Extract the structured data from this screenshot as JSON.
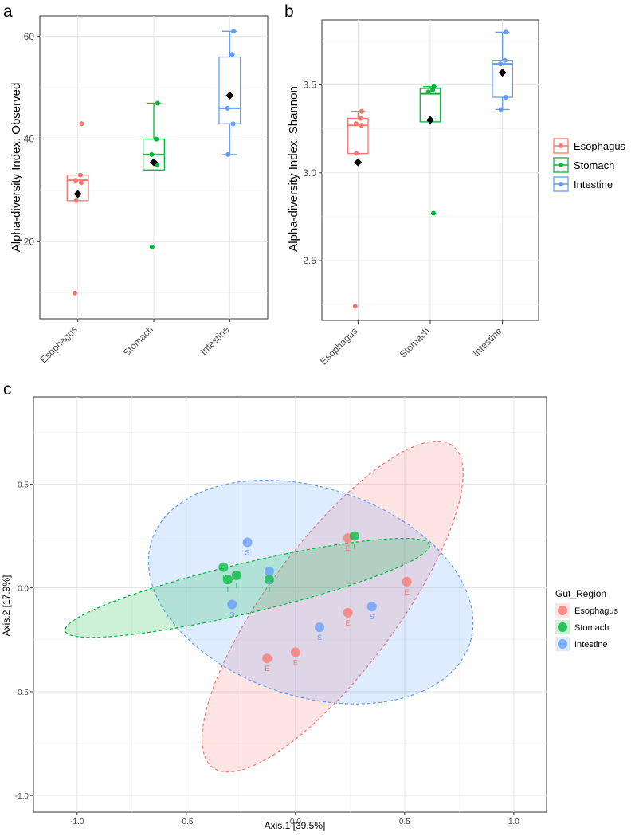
{
  "colors": {
    "Esophagus": "#F8766D",
    "Stomach": "#00BA38",
    "Intestine": "#619CFF"
  },
  "chart_data": [
    {
      "panel": "a",
      "type": "box",
      "ylabel": "Alpha-diversity Index: Observed",
      "categories": [
        "Esophagus",
        "Stomach",
        "Intestine"
      ],
      "ylim": [
        5,
        64
      ],
      "yticks": [
        20,
        40,
        60
      ],
      "boxes": [
        {
          "name": "Esophagus",
          "q1": 28,
          "median": 32,
          "q3": 33,
          "whisker_low": 28,
          "whisker_high": 33,
          "mean": 29.3,
          "points": [
            43,
            33,
            32,
            31.5,
            28,
            10
          ]
        },
        {
          "name": "Stomach",
          "q1": 34,
          "median": 37,
          "q3": 40,
          "whisker_low": 34,
          "whisker_high": 47,
          "mean": 35.5,
          "points": [
            47,
            40,
            37,
            35,
            19
          ]
        },
        {
          "name": "Intestine",
          "q1": 43,
          "median": 46,
          "q3": 56,
          "whisker_low": 37,
          "whisker_high": 61,
          "mean": 48.5,
          "points": [
            61,
            56.5,
            46,
            43,
            37
          ]
        }
      ]
    },
    {
      "panel": "b",
      "type": "box",
      "ylabel": "Alpha-diversity Index: Shannon",
      "categories": [
        "Esophagus",
        "Stomach",
        "Intestine"
      ],
      "ylim": [
        2.16,
        3.87
      ],
      "yticks": [
        2.5,
        3.0,
        3.5
      ],
      "tick_labels": [
        "2.5",
        "3.0",
        "3.5"
      ],
      "boxes": [
        {
          "name": "Esophagus",
          "q1": 3.11,
          "median": 3.27,
          "q3": 3.31,
          "whisker_low": 3.11,
          "whisker_high": 3.35,
          "mean": 3.06,
          "points": [
            3.35,
            3.31,
            3.28,
            3.27,
            3.11,
            2.24
          ]
        },
        {
          "name": "Stomach",
          "q1": 3.29,
          "median": 3.45,
          "q3": 3.48,
          "whisker_low": 3.29,
          "whisker_high": 3.49,
          "mean": 3.3,
          "points": [
            3.49,
            3.47,
            3.46,
            2.77
          ]
        },
        {
          "name": "Intestine",
          "q1": 3.43,
          "median": 3.62,
          "q3": 3.64,
          "whisker_low": 3.36,
          "whisker_high": 3.8,
          "mean": 3.57,
          "points": [
            3.8,
            3.64,
            3.62,
            3.43,
            3.36
          ]
        }
      ],
      "legend": {
        "position": "right",
        "entries": [
          "Esophagus",
          "Stomach",
          "Intestine"
        ]
      }
    },
    {
      "panel": "c",
      "type": "scatter",
      "xlabel": "Axis.1   [39.5%]",
      "ylabel": "Axis.2   [17.9%]",
      "xlim": [
        -1.2,
        1.15
      ],
      "ylim": [
        -1.08,
        0.92
      ],
      "xticks": [
        -1.0,
        -0.5,
        0.0,
        0.5,
        1.0
      ],
      "xtick_labels": [
        "-1.0",
        "-0.5",
        "0.0",
        "0.5",
        "1.0"
      ],
      "yticks": [
        -1.0,
        -0.5,
        0.0,
        0.5
      ],
      "ytick_labels": [
        "-1.0",
        "-0.5",
        "0.0",
        "0.5"
      ],
      "legend": {
        "title": "Gut_Region",
        "position": "right",
        "entries": [
          "Esophagus",
          "Stomach",
          "Intestine"
        ]
      },
      "ellipses": [
        {
          "group": "Esophagus",
          "cx": 0.17,
          "cy": -0.09,
          "rx": 0.95,
          "ry": 0.3,
          "angle_deg": 55
        },
        {
          "group": "Intestine",
          "cx": 0.07,
          "cy": -0.02,
          "rx": 0.77,
          "ry": 0.5,
          "angle_deg": -20
        },
        {
          "group": "Stomach",
          "cx": -0.22,
          "cy": 0.0,
          "rx": 0.86,
          "ry": 0.12,
          "angle_deg": 14
        }
      ],
      "points": [
        {
          "group": "Esophagus",
          "x": 0.24,
          "y": 0.24,
          "label": "E"
        },
        {
          "group": "Esophagus",
          "x": 0.51,
          "y": 0.03,
          "label": "E"
        },
        {
          "group": "Esophagus",
          "x": 0.24,
          "y": -0.12,
          "label": "E"
        },
        {
          "group": "Esophagus",
          "x": 0.0,
          "y": -0.31,
          "label": "E"
        },
        {
          "group": "Esophagus",
          "x": -0.13,
          "y": -0.34,
          "label": "E"
        },
        {
          "group": "Stomach",
          "x": 0.27,
          "y": 0.25,
          "label": "I"
        },
        {
          "group": "Stomach",
          "x": -0.33,
          "y": 0.1,
          "label": "I"
        },
        {
          "group": "Stomach",
          "x": -0.31,
          "y": 0.04,
          "label": "I"
        },
        {
          "group": "Stomach",
          "x": -0.27,
          "y": 0.06,
          "label": "I"
        },
        {
          "group": "Stomach",
          "x": -0.12,
          "y": 0.04,
          "label": "I"
        },
        {
          "group": "Intestine",
          "x": -0.22,
          "y": 0.22,
          "label": "S"
        },
        {
          "group": "Intestine",
          "x": -0.12,
          "y": 0.08,
          "label": "S"
        },
        {
          "group": "Intestine",
          "x": -0.29,
          "y": -0.08,
          "label": "S"
        },
        {
          "group": "Intestine",
          "x": 0.11,
          "y": -0.19,
          "label": "S"
        },
        {
          "group": "Intestine",
          "x": 0.35,
          "y": -0.09,
          "label": "S"
        }
      ]
    }
  ]
}
